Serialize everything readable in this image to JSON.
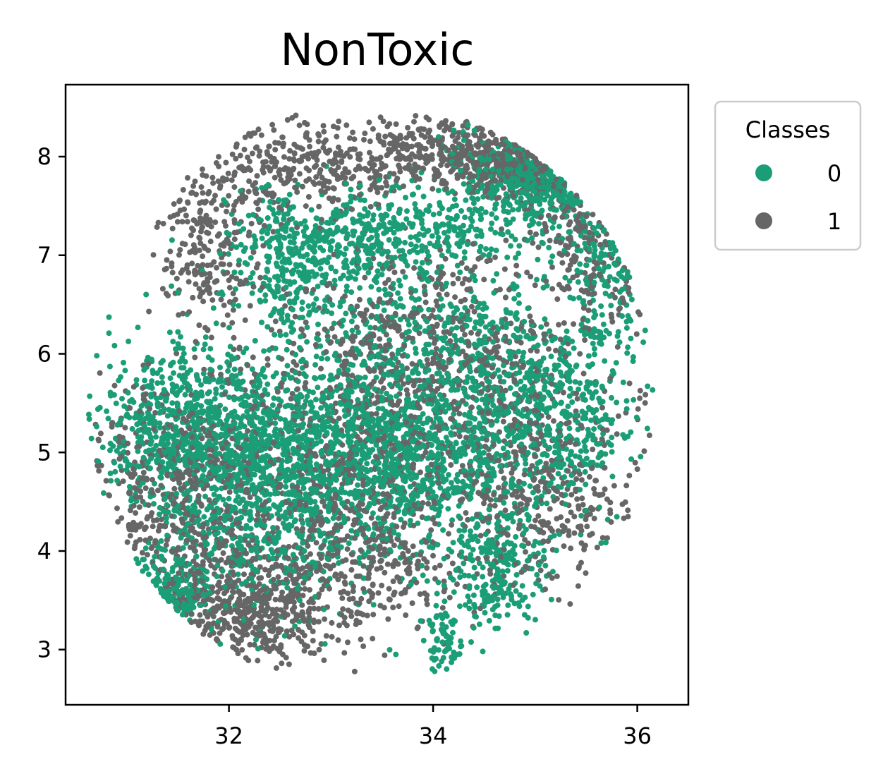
{
  "chart_data": {
    "type": "scatter",
    "title": "NonToxic",
    "xlabel": "",
    "ylabel": "",
    "xlim": [
      30.4,
      36.5
    ],
    "ylim": [
      2.44,
      8.73
    ],
    "xticks": [
      32,
      34,
      36
    ],
    "yticks": [
      3,
      4,
      5,
      6,
      7,
      8
    ],
    "grid": false,
    "legend": {
      "title": "Classes",
      "placement": "outside-top-right",
      "entries": [
        {
          "label": "0",
          "color": "#1b9e77"
        },
        {
          "label": "1",
          "color": "#666666"
        }
      ]
    },
    "series": [
      {
        "name": "0",
        "color": "#1b9e77",
        "clusters": [
          {
            "x": 31.6,
            "y": 5.2,
            "sx": 0.45,
            "sy": 0.45,
            "n": 700
          },
          {
            "x": 32.6,
            "y": 5.0,
            "sx": 0.6,
            "sy": 0.45,
            "n": 800
          },
          {
            "x": 33.8,
            "y": 5.0,
            "sx": 0.6,
            "sy": 0.5,
            "n": 900
          },
          {
            "x": 35.1,
            "y": 5.4,
            "sx": 0.45,
            "sy": 0.5,
            "n": 550
          },
          {
            "x": 32.6,
            "y": 6.85,
            "sx": 0.3,
            "sy": 0.3,
            "n": 250
          },
          {
            "x": 33.6,
            "y": 7.25,
            "sx": 0.7,
            "sy": 0.22,
            "n": 450
          },
          {
            "x": 35.2,
            "y": 7.85,
            "sx": 0.45,
            "sy": 0.25,
            "n": 450
          },
          {
            "x": 35.7,
            "y": 7.0,
            "sx": 0.2,
            "sy": 0.45,
            "n": 120
          },
          {
            "x": 33.9,
            "y": 6.2,
            "sx": 0.8,
            "sy": 0.45,
            "n": 450
          },
          {
            "x": 34.6,
            "y": 3.8,
            "sx": 0.25,
            "sy": 0.3,
            "n": 220
          },
          {
            "x": 34.1,
            "y": 3.1,
            "sx": 0.1,
            "sy": 0.15,
            "n": 70
          },
          {
            "x": 31.3,
            "y": 3.4,
            "sx": 0.25,
            "sy": 0.3,
            "n": 150
          },
          {
            "x": 32.2,
            "y": 4.1,
            "sx": 0.5,
            "sy": 0.45,
            "n": 350
          }
        ]
      },
      {
        "name": "1",
        "color": "#666666",
        "clusters": [
          {
            "x": 31.5,
            "y": 4.5,
            "sx": 0.5,
            "sy": 0.6,
            "n": 500
          },
          {
            "x": 32.1,
            "y": 3.4,
            "sx": 0.45,
            "sy": 0.3,
            "n": 450
          },
          {
            "x": 33.2,
            "y": 3.9,
            "sx": 0.55,
            "sy": 0.35,
            "n": 350
          },
          {
            "x": 32.5,
            "y": 7.9,
            "sx": 0.6,
            "sy": 0.3,
            "n": 300
          },
          {
            "x": 31.8,
            "y": 7.0,
            "sx": 0.25,
            "sy": 0.4,
            "n": 200
          },
          {
            "x": 34.2,
            "y": 8.05,
            "sx": 0.6,
            "sy": 0.2,
            "n": 380
          },
          {
            "x": 33.9,
            "y": 6.1,
            "sx": 0.85,
            "sy": 0.5,
            "n": 550
          },
          {
            "x": 33.5,
            "y": 5.0,
            "sx": 0.9,
            "sy": 0.55,
            "n": 600
          },
          {
            "x": 35.1,
            "y": 4.6,
            "sx": 0.45,
            "sy": 0.55,
            "n": 300
          },
          {
            "x": 35.6,
            "y": 7.2,
            "sx": 0.3,
            "sy": 0.45,
            "n": 160
          },
          {
            "x": 35.0,
            "y": 8.0,
            "sx": 0.4,
            "sy": 0.2,
            "n": 200
          }
        ]
      }
    ]
  }
}
